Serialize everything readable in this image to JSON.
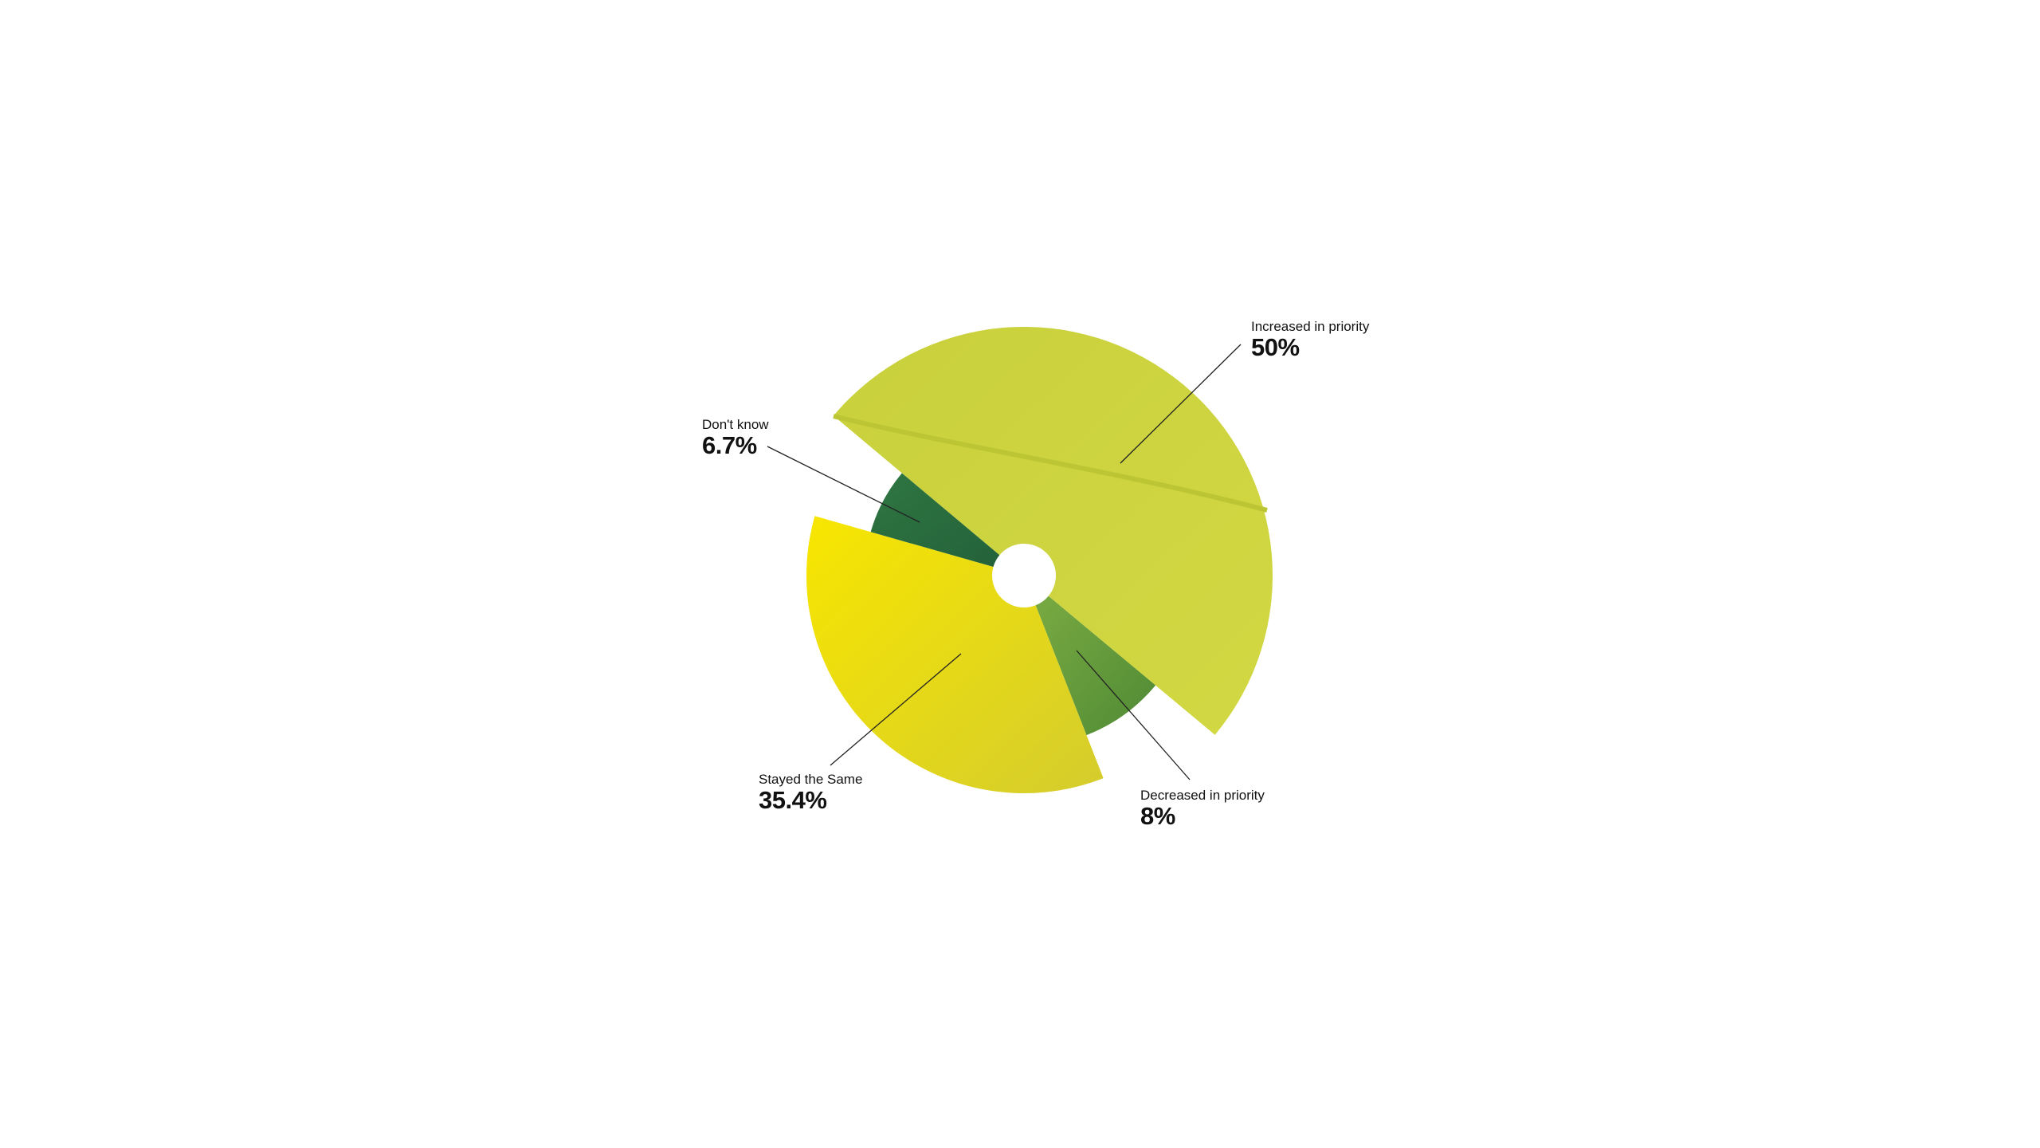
{
  "chart_data": {
    "type": "pie",
    "variant": "polar-area (variable radius) donut",
    "unit": "%",
    "slices": [
      {
        "label": "Increased in priority",
        "value": 50,
        "display": "50%",
        "color": "#cdd43e"
      },
      {
        "label": "Decreased in priority",
        "value": 8,
        "display": "8%",
        "color": "#6b9e3c"
      },
      {
        "label": "Stayed the Same",
        "value": 35.4,
        "display": "35.4%",
        "color": "#ecdf14"
      },
      {
        "label": "Don't know",
        "value": 6.7,
        "display": "6.7%",
        "color": "#2b6d3f"
      }
    ],
    "legend": "none (leader-line labels)",
    "grid": false
  }
}
